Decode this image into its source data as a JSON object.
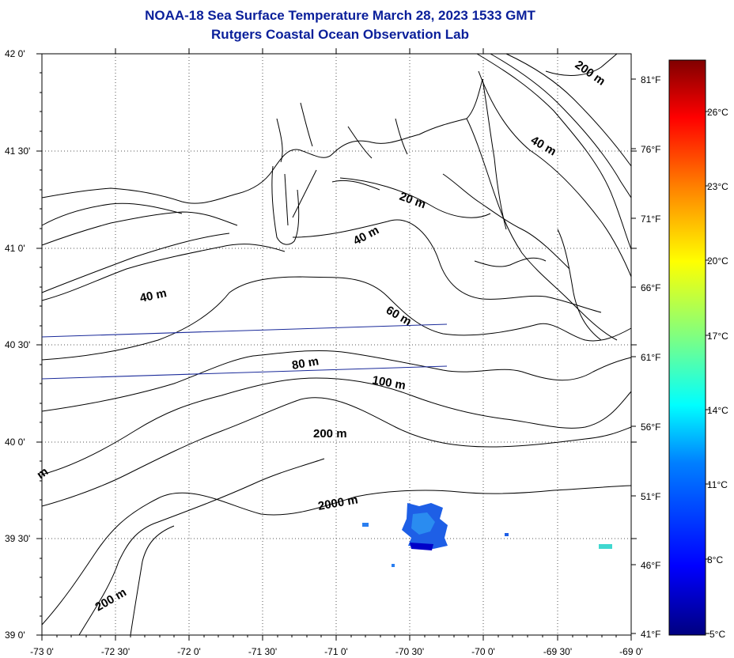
{
  "title": {
    "line1": "NOAA-18 Sea Surface Temperature March 28, 2023 1533 GMT",
    "line2": "Rutgers Coastal Ocean Observation Lab"
  },
  "axes": {
    "lon_labels": [
      "-73 0'",
      "-72 30'",
      "-72 0'",
      "-71 30'",
      "-71 0'",
      "-70 30'",
      "-70 0'",
      "-69 30'",
      "-69 0'"
    ],
    "lat_labels": [
      "42 0'",
      "41 30'",
      "41 0'",
      "40 30'",
      "40 0'",
      "39 30'",
      "39 0'"
    ]
  },
  "colorbar": {
    "fahrenheit": [
      "81°F",
      "76°F",
      "71°F",
      "66°F",
      "61°F",
      "56°F",
      "51°F",
      "46°F",
      "41°F"
    ],
    "celsius": [
      "26°C",
      "23°C",
      "20°C",
      "17°C",
      "14°C",
      "11°C",
      "8°C",
      "5°C"
    ],
    "colors": [
      "#000080",
      "#0000ff",
      "#0080ff",
      "#00ffff",
      "#80ff80",
      "#ffff00",
      "#ff8000",
      "#ff0000",
      "#800000"
    ]
  },
  "contour_labels": [
    "200 m",
    "40 m",
    "20 m",
    "40 m",
    "40 m",
    "60 m",
    "80 m",
    "100 m",
    "200 m",
    "2000 m",
    "200 m",
    "m"
  ],
  "colors": {
    "title": "#0a1f9a",
    "contour": "#000000",
    "track_line": "#1a2a9a",
    "sst_patch": "#1e60e8"
  }
}
